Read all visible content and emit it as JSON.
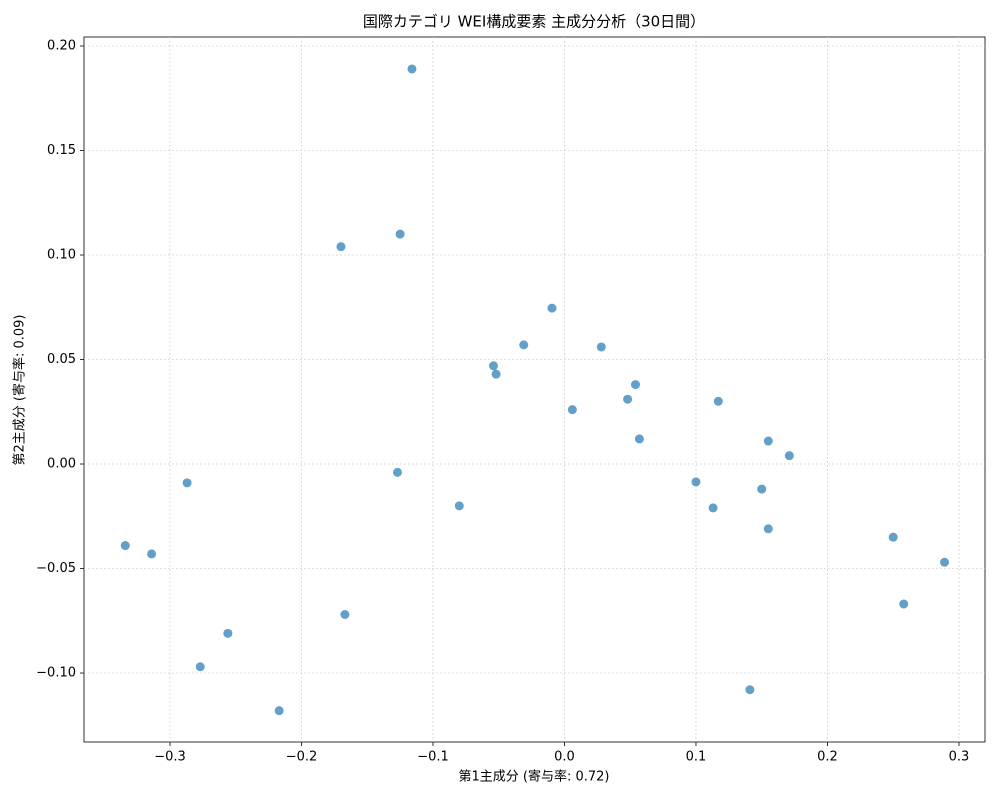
{
  "chart_data": {
    "type": "scatter",
    "title": "国際カテゴリ WEI構成要素 主成分分析（30日間）",
    "x_label": "第1主成分 (寄与率: 0.72)",
    "y_label": "第2主成分 (寄与率: 0.09)",
    "color": "#1f77b4",
    "grid": true,
    "xlim": [
      -0.3654,
      0.3198
    ],
    "ylim": [
      -0.133,
      0.2043
    ],
    "xticks": [
      {
        "value": -0.3,
        "label": "−0.3"
      },
      {
        "value": -0.2,
        "label": "−0.2"
      },
      {
        "value": -0.1,
        "label": "−0.1"
      },
      {
        "value": 0,
        "label": "0.0"
      },
      0.1,
      0.2,
      0.3
    ],
    "yticks": [
      {
        "value": -0.1,
        "label": "−0.10"
      },
      {
        "value": -0.05,
        "label": "−0.05"
      },
      {
        "value": 0,
        "label": "0.00"
      },
      0.05,
      {
        "value": 0.1,
        "label": "0.10"
      },
      0.15,
      {
        "value": 0.2,
        "label": "0.20"
      }
    ],
    "x": [
      -0.116,
      -0.17,
      -0.125,
      -0.0095,
      -0.031,
      0.028,
      -0.054,
      -0.052,
      0.054,
      0.048,
      0.117,
      0.006,
      0.057,
      0.155,
      0.171,
      -0.127,
      -0.287,
      0.1,
      0.15,
      -0.08,
      0.113,
      0.155,
      -0.334,
      -0.314,
      0.25,
      0.289,
      -0.167,
      0.258,
      -0.256,
      -0.277,
      0.141,
      -0.217
    ],
    "values": [
      0.189,
      0.104,
      0.11,
      0.0746,
      0.057,
      0.056,
      0.047,
      0.043,
      0.038,
      0.031,
      0.03,
      0.026,
      0.012,
      0.011,
      0.004,
      -0.004,
      -0.009,
      -0.0086,
      -0.012,
      -0.02,
      -0.021,
      -0.031,
      -0.039,
      -0.043,
      -0.035,
      -0.047,
      -0.072,
      -0.067,
      -0.081,
      -0.097,
      -0.108,
      -0.118
    ]
  }
}
